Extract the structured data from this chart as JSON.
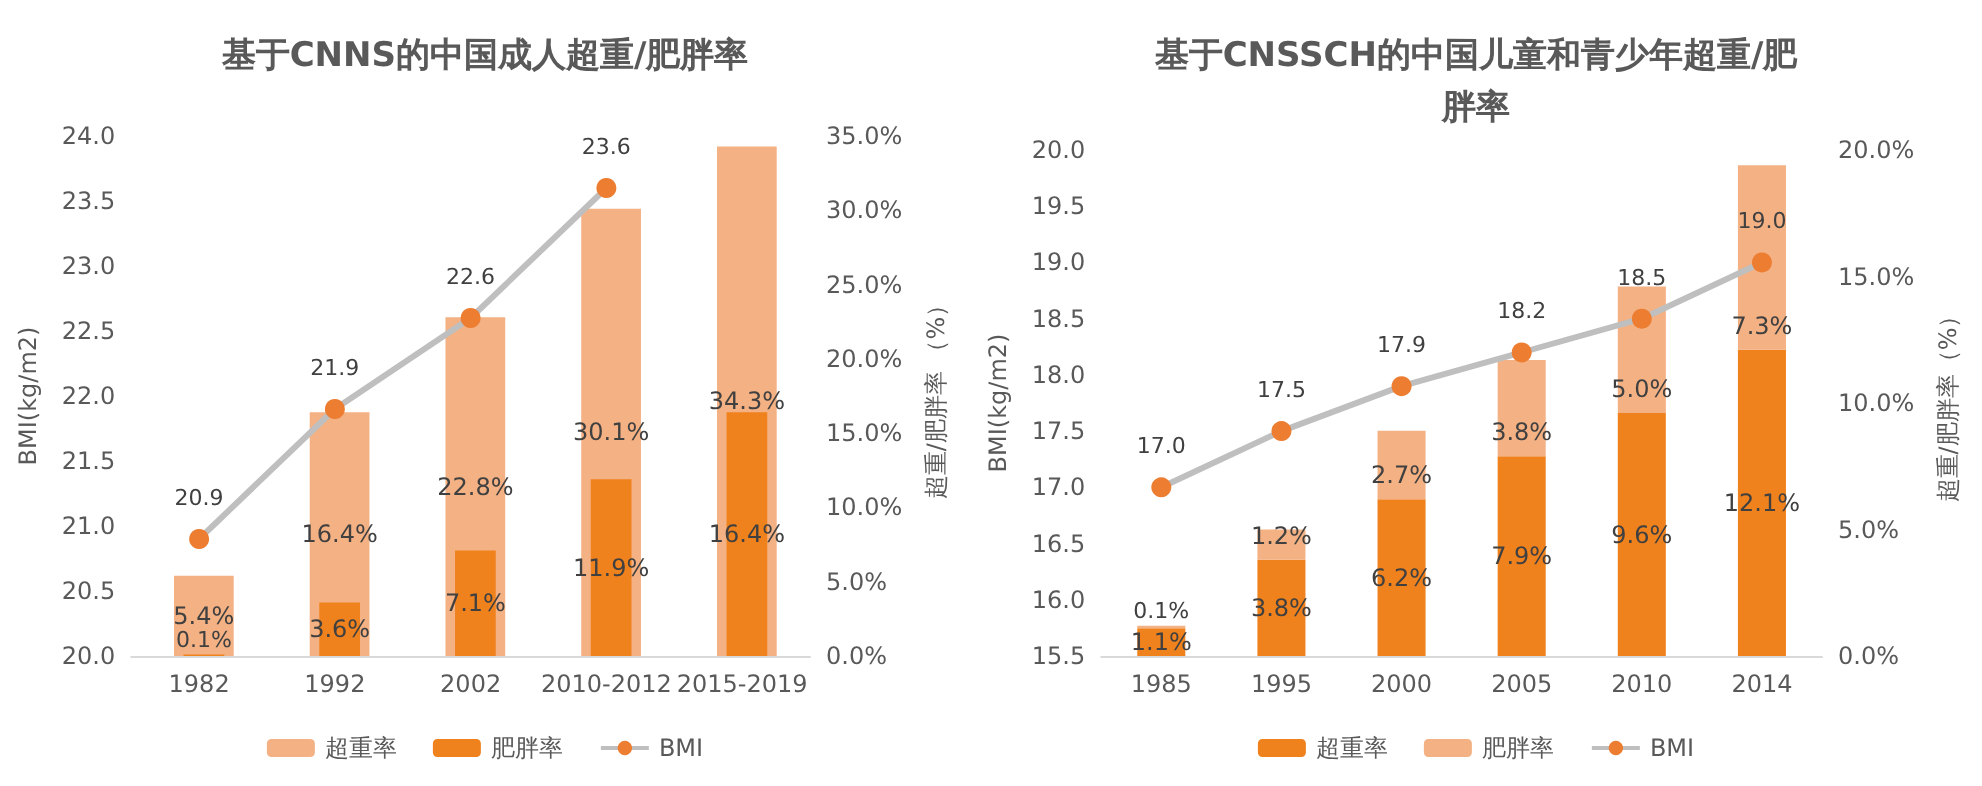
{
  "chart_data": [
    {
      "type": "bar",
      "title": "基于CNNS的中国成人超重/肥胖率",
      "ylabel": "BMI(kg/m2)",
      "y2label": "超重/肥胖率 （%）",
      "categories": [
        "1982",
        "1992",
        "2002",
        "2010-2012",
        "2015-2019"
      ],
      "series": [
        {
          "name": "超重率",
          "color": "#f4b183",
          "axis": "y2",
          "values": [
            5.4,
            16.4,
            22.8,
            30.1,
            34.3
          ],
          "value_labels": [
            "5.4%",
            "16.4%",
            "22.8%",
            "30.1%",
            "34.3%"
          ]
        },
        {
          "name": "肥胖率",
          "color": "#f0821e",
          "axis": "y2",
          "values": [
            0.1,
            3.6,
            7.1,
            11.9,
            16.4
          ],
          "value_labels": [
            "0.1%",
            "3.6%",
            "7.1%",
            "11.9%",
            "16.4%"
          ]
        },
        {
          "name": "BMI",
          "type": "line",
          "color": "#ed7d31",
          "values": [
            20.9,
            21.9,
            22.6,
            23.6,
            null
          ],
          "value_labels": [
            "20.9",
            "21.9",
            "22.6",
            "23.6",
            null
          ]
        }
      ],
      "ylim": [
        20,
        24
      ],
      "yticks": [
        {
          "value": 20,
          "label": "20.0"
        },
        {
          "value": 20.5,
          "label": "20.5"
        },
        {
          "value": 21,
          "label": "21.0"
        },
        {
          "value": 21.5,
          "label": "21.5"
        },
        {
          "value": 22,
          "label": "22.0"
        },
        {
          "value": 22.5,
          "label": "22.5"
        },
        {
          "value": 23,
          "label": "23.0"
        },
        {
          "value": 23.5,
          "label": "23.5"
        },
        {
          "value": 24,
          "label": "24.0"
        }
      ],
      "y2lim": [
        0,
        35
      ],
      "y2ticks": [
        {
          "value": 0,
          "label": "0.0%"
        },
        {
          "value": 5,
          "label": "5.0%"
        },
        {
          "value": 10,
          "label": "10.0%"
        },
        {
          "value": 15,
          "label": "15.0%"
        },
        {
          "value": 20,
          "label": "20.0%"
        },
        {
          "value": 25,
          "label": "25.0%"
        },
        {
          "value": 30,
          "label": "30.0%"
        },
        {
          "value": 35,
          "label": "35.0%"
        }
      ],
      "grid": false,
      "legend": "bottom",
      "marker": "circle"
    },
    {
      "type": "bar",
      "title": "基于CNSSCH的中国儿童和青少年超重/肥胖率",
      "ylabel": "BMI(kg/m2)",
      "y2label": "超重/肥胖率（%）",
      "categories": [
        "1985",
        "1995",
        "2000",
        "2005",
        "2010",
        "2014"
      ],
      "stacked": true,
      "series": [
        {
          "name": "超重率",
          "color": "#f0821e",
          "axis": "y2",
          "values": [
            1.1,
            3.8,
            6.2,
            7.9,
            9.6,
            12.1
          ],
          "value_labels": [
            "1.1%",
            "3.8%",
            "6.2%",
            "7.9%",
            "9.6%",
            "12.1%"
          ]
        },
        {
          "name": "肥胖率",
          "color": "#f4b183",
          "axis": "y2",
          "values": [
            0.1,
            1.2,
            2.7,
            3.8,
            5.0,
            7.3
          ],
          "value_labels": [
            "0.1%",
            "1.2%",
            "2.7%",
            "3.8%",
            "5.0%",
            "7.3%"
          ]
        },
        {
          "name": "BMI",
          "type": "line",
          "color": "#ed7d31",
          "values": [
            17.0,
            17.5,
            17.9,
            18.2,
            18.5,
            19.0
          ],
          "value_labels": [
            "17.0",
            "17.5",
            "17.9",
            "18.2",
            "18.5",
            "19.0"
          ]
        }
      ],
      "ylim": [
        15.5,
        20
      ],
      "yticks": [
        {
          "value": 15.5,
          "label": "15.5"
        },
        {
          "value": 16,
          "label": "16.0"
        },
        {
          "value": 16.5,
          "label": "16.5"
        },
        {
          "value": 17,
          "label": "17.0"
        },
        {
          "value": 17.5,
          "label": "17.5"
        },
        {
          "value": 18,
          "label": "18.0"
        },
        {
          "value": 18.5,
          "label": "18.5"
        },
        {
          "value": 19,
          "label": "19.0"
        },
        {
          "value": 19.5,
          "label": "19.5"
        },
        {
          "value": 20,
          "label": "20.0"
        }
      ],
      "y2lim": [
        0,
        20
      ],
      "y2ticks": [
        {
          "value": 0,
          "label": "0.0%"
        },
        {
          "value": 5,
          "label": "5.0%"
        },
        {
          "value": 10,
          "label": "10.0%"
        },
        {
          "value": 15,
          "label": "15.0%"
        },
        {
          "value": 20,
          "label": "20.0%"
        }
      ],
      "grid": false,
      "legend": "bottom",
      "marker": "circle"
    }
  ]
}
